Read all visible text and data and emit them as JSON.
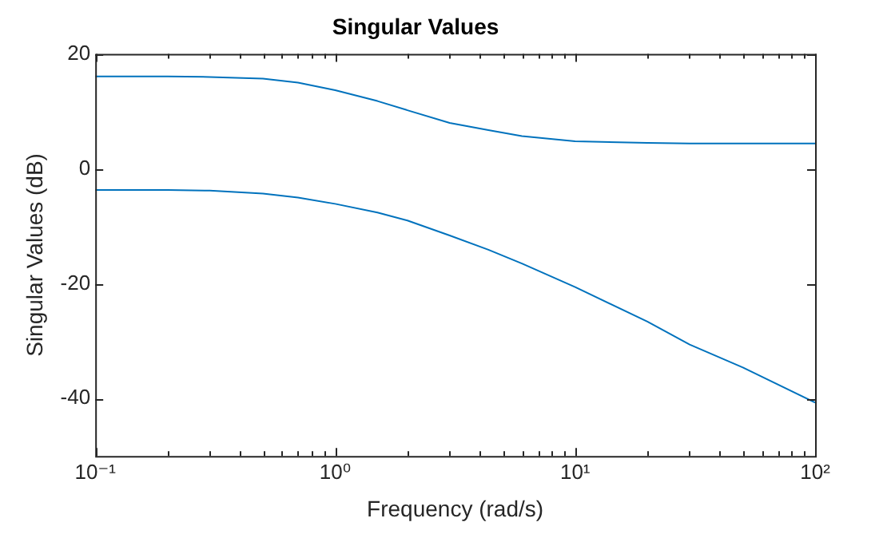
{
  "chart_data": {
    "type": "line",
    "title": "Singular Values",
    "xlabel": "Frequency (rad/s)",
    "ylabel": "Singular Values (dB)",
    "log": "x",
    "grid": false,
    "legend": false,
    "marker": "none",
    "line_style": "solid",
    "x": [
      0.1,
      0.2,
      0.3,
      0.5,
      0.7,
      1,
      1.5,
      2,
      3,
      4.35,
      6,
      10,
      20,
      30,
      50,
      100
    ],
    "series": [
      {
        "color": "#0072bd",
        "values": [
          16.1,
          16.1,
          16.0,
          15.7,
          15.0,
          13.7,
          11.8,
          10.2,
          8.0,
          6.75,
          5.7,
          4.8,
          4.5,
          4.4,
          4.4,
          4.4
        ]
      },
      {
        "color": "#0072bd",
        "values": [
          -3.7,
          -3.7,
          -3.8,
          -4.3,
          -5.0,
          -6.1,
          -7.6,
          -9.0,
          -11.6,
          -14.1,
          -16.5,
          -20.6,
          -26.6,
          -30.6,
          -34.6,
          -40.7
        ]
      }
    ],
    "xlim": [
      0.1,
      100
    ],
    "xticks": [
      {
        "value": 0.1,
        "label": "10⁻¹"
      },
      {
        "value": 0.2,
        "label": null
      },
      {
        "value": 0.3,
        "label": null
      },
      {
        "value": 0.4,
        "label": null
      },
      {
        "value": 0.5,
        "label": null
      },
      {
        "value": 0.6,
        "label": null
      },
      {
        "value": 0.7,
        "label": null
      },
      {
        "value": 0.8,
        "label": null
      },
      {
        "value": 0.9,
        "label": null
      },
      {
        "value": 1,
        "label": "10⁰"
      },
      {
        "value": 2,
        "label": null
      },
      {
        "value": 3,
        "label": null
      },
      {
        "value": 4,
        "label": null
      },
      {
        "value": 5,
        "label": null
      },
      {
        "value": 6,
        "label": null
      },
      {
        "value": 7,
        "label": null
      },
      {
        "value": 8,
        "label": null
      },
      {
        "value": 9,
        "label": null
      },
      {
        "value": 10,
        "label": "10¹"
      },
      {
        "value": 20,
        "label": null
      },
      {
        "value": 30,
        "label": null
      },
      {
        "value": 40,
        "label": null
      },
      {
        "value": 50,
        "label": null
      },
      {
        "value": 60,
        "label": null
      },
      {
        "value": 70,
        "label": null
      },
      {
        "value": 80,
        "label": null
      },
      {
        "value": 90,
        "label": null
      },
      {
        "value": 100,
        "label": "10²"
      }
    ],
    "ylim": [
      -50,
      20
    ],
    "yticks": [
      -40,
      -20,
      0,
      20
    ]
  }
}
